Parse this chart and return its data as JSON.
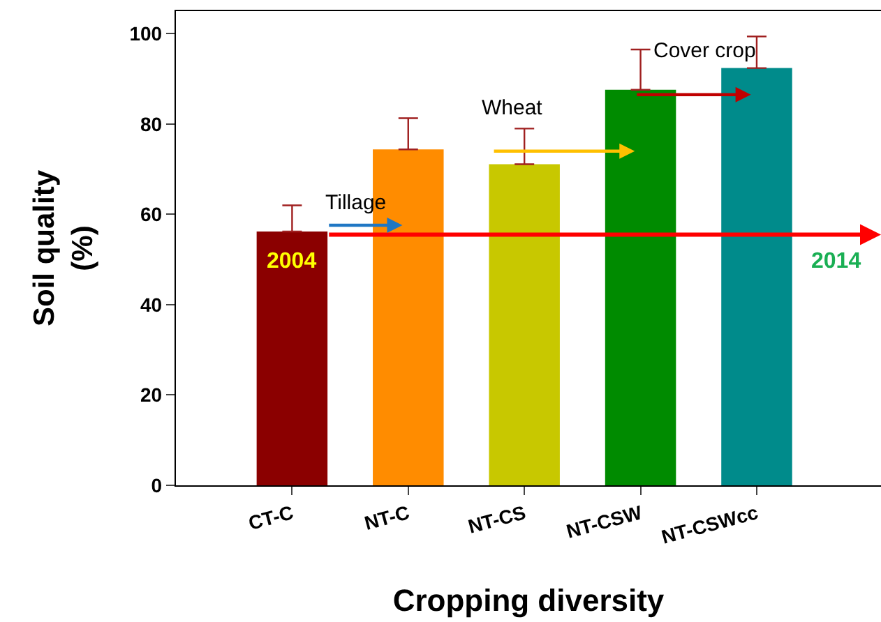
{
  "chart_data": {
    "type": "bar",
    "xlabel": "Cropping diversity",
    "ylabel": "Soil quality\n(%)",
    "categories": [
      "CT-C",
      "NT-C",
      "NT-CS",
      "NT-CSW",
      "NT-CSWcc"
    ],
    "values": [
      56.2,
      74.4,
      71.1,
      87.6,
      92.4
    ],
    "colors": [
      "#8b0000",
      "#ff8c00",
      "#c8c800",
      "#008b00",
      "#008b8b"
    ],
    "errors": [
      [
        56.2,
        62.0
      ],
      [
        74.4,
        81.3
      ],
      [
        71.1,
        79.0
      ],
      [
        87.6,
        96.5
      ],
      [
        92.4,
        99.4
      ]
    ],
    "ylim": [
      0,
      105
    ],
    "yticks": [
      0,
      20,
      40,
      60,
      80,
      100
    ],
    "annotations": [
      "Tillage",
      "Wheat",
      "Cover crop",
      "2004",
      "2014"
    ]
  }
}
